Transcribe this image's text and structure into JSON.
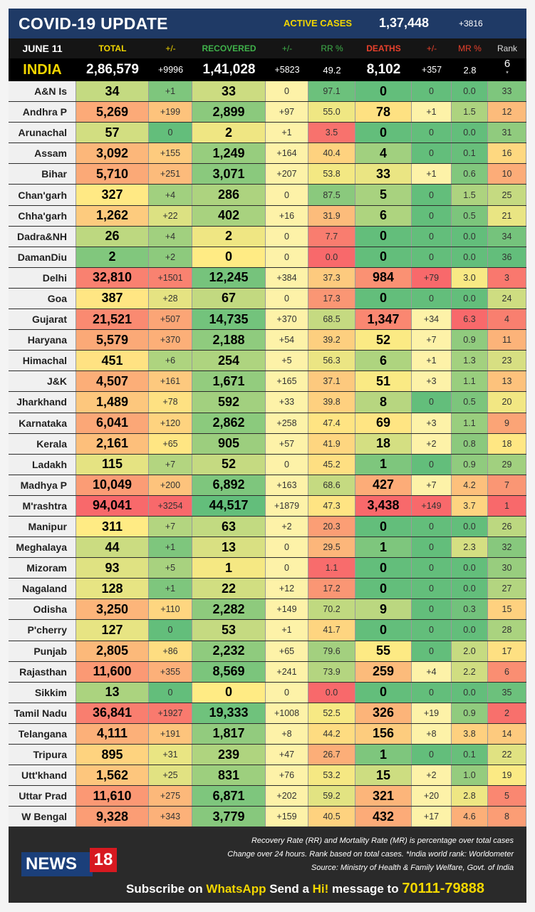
{
  "header": {
    "title": "COVID-19 UPDATE",
    "active_label": "ACTIVE CASES",
    "active_value": "1,37,448",
    "active_change": "+3816"
  },
  "columns": {
    "date": "JUNE 11",
    "total": "TOTAL",
    "total_change": "+/-",
    "recovered": "RECOVERED",
    "recovered_change": "+/-",
    "rr": "RR %",
    "deaths": "DEATHS",
    "deaths_change": "+/-",
    "mr": "MR %",
    "rank": "Rank"
  },
  "india": {
    "name": "INDIA",
    "total": "2,86,579",
    "total_change": "+9996",
    "recovered": "1,41,028",
    "recovered_change": "+5823",
    "rr": "49.2",
    "deaths": "8,102",
    "deaths_change": "+357",
    "mr": "2.8",
    "rank": "6",
    "rank_mark": "*"
  },
  "colors": {
    "header_bg": "#1f3a66",
    "accent_yellow": "#f2d600",
    "recovered_green": "#3fb14a",
    "deaths_red": "#e8412c"
  },
  "rows": [
    {
      "state": "A&N Is",
      "total": "34",
      "total_change": "+1",
      "recovered": "33",
      "recovered_change": "0",
      "rr": "97.1",
      "deaths": "0",
      "deaths_change": "0",
      "mr": "0.0",
      "rank": "33"
    },
    {
      "state": "Andhra P",
      "total": "5,269",
      "total_change": "+199",
      "recovered": "2,899",
      "recovered_change": "+97",
      "rr": "55.0",
      "deaths": "78",
      "deaths_change": "+1",
      "mr": "1.5",
      "rank": "12"
    },
    {
      "state": "Arunachal",
      "total": "57",
      "total_change": "0",
      "recovered": "2",
      "recovered_change": "+1",
      "rr": "3.5",
      "deaths": "0",
      "deaths_change": "0",
      "mr": "0.0",
      "rank": "31"
    },
    {
      "state": "Assam",
      "total": "3,092",
      "total_change": "+155",
      "recovered": "1,249",
      "recovered_change": "+164",
      "rr": "40.4",
      "deaths": "4",
      "deaths_change": "0",
      "mr": "0.1",
      "rank": "16"
    },
    {
      "state": "Bihar",
      "total": "5,710",
      "total_change": "+251",
      "recovered": "3,071",
      "recovered_change": "+207",
      "rr": "53.8",
      "deaths": "33",
      "deaths_change": "+1",
      "mr": "0.6",
      "rank": "10"
    },
    {
      "state": "Chan'garh",
      "total": "327",
      "total_change": "+4",
      "recovered": "286",
      "recovered_change": "0",
      "rr": "87.5",
      "deaths": "5",
      "deaths_change": "0",
      "mr": "1.5",
      "rank": "25"
    },
    {
      "state": "Chha'garh",
      "total": "1,262",
      "total_change": "+22",
      "recovered": "402",
      "recovered_change": "+16",
      "rr": "31.9",
      "deaths": "6",
      "deaths_change": "0",
      "mr": "0.5",
      "rank": "21"
    },
    {
      "state": "Dadra&NH",
      "total": "26",
      "total_change": "+4",
      "recovered": "2",
      "recovered_change": "0",
      "rr": "7.7",
      "deaths": "0",
      "deaths_change": "0",
      "mr": "0.0",
      "rank": "34"
    },
    {
      "state": "DamanDiu",
      "total": "2",
      "total_change": "+2",
      "recovered": "0",
      "recovered_change": "0",
      "rr": "0.0",
      "deaths": "0",
      "deaths_change": "0",
      "mr": "0.0",
      "rank": "36"
    },
    {
      "state": "Delhi",
      "total": "32,810",
      "total_change": "+1501",
      "recovered": "12,245",
      "recovered_change": "+384",
      "rr": "37.3",
      "deaths": "984",
      "deaths_change": "+79",
      "mr": "3.0",
      "rank": "3"
    },
    {
      "state": "Goa",
      "total": "387",
      "total_change": "+28",
      "recovered": "67",
      "recovered_change": "0",
      "rr": "17.3",
      "deaths": "0",
      "deaths_change": "0",
      "mr": "0.0",
      "rank": "24"
    },
    {
      "state": "Gujarat",
      "total": "21,521",
      "total_change": "+507",
      "recovered": "14,735",
      "recovered_change": "+370",
      "rr": "68.5",
      "deaths": "1,347",
      "deaths_change": "+34",
      "mr": "6.3",
      "rank": "4"
    },
    {
      "state": "Haryana",
      "total": "5,579",
      "total_change": "+370",
      "recovered": "2,188",
      "recovered_change": "+54",
      "rr": "39.2",
      "deaths": "52",
      "deaths_change": "+7",
      "mr": "0.9",
      "rank": "11"
    },
    {
      "state": "Himachal",
      "total": "451",
      "total_change": "+6",
      "recovered": "254",
      "recovered_change": "+5",
      "rr": "56.3",
      "deaths": "6",
      "deaths_change": "+1",
      "mr": "1.3",
      "rank": "23"
    },
    {
      "state": "J&K",
      "total": "4,507",
      "total_change": "+161",
      "recovered": "1,671",
      "recovered_change": "+165",
      "rr": "37.1",
      "deaths": "51",
      "deaths_change": "+3",
      "mr": "1.1",
      "rank": "13"
    },
    {
      "state": "Jharkhand",
      "total": "1,489",
      "total_change": "+78",
      "recovered": "592",
      "recovered_change": "+33",
      "rr": "39.8",
      "deaths": "8",
      "deaths_change": "0",
      "mr": "0.5",
      "rank": "20"
    },
    {
      "state": "Karnataka",
      "total": "6,041",
      "total_change": "+120",
      "recovered": "2,862",
      "recovered_change": "+258",
      "rr": "47.4",
      "deaths": "69",
      "deaths_change": "+3",
      "mr": "1.1",
      "rank": "9"
    },
    {
      "state": "Kerala",
      "total": "2,161",
      "total_change": "+65",
      "recovered": "905",
      "recovered_change": "+57",
      "rr": "41.9",
      "deaths": "18",
      "deaths_change": "+2",
      "mr": "0.8",
      "rank": "18"
    },
    {
      "state": "Ladakh",
      "total": "115",
      "total_change": "+7",
      "recovered": "52",
      "recovered_change": "0",
      "rr": "45.2",
      "deaths": "1",
      "deaths_change": "0",
      "mr": "0.9",
      "rank": "29"
    },
    {
      "state": "Madhya P",
      "total": "10,049",
      "total_change": "+200",
      "recovered": "6,892",
      "recovered_change": "+163",
      "rr": "68.6",
      "deaths": "427",
      "deaths_change": "+7",
      "mr": "4.2",
      "rank": "7"
    },
    {
      "state": "M'rashtra",
      "total": "94,041",
      "total_change": "+3254",
      "recovered": "44,517",
      "recovered_change": "+1879",
      "rr": "47.3",
      "deaths": "3,438",
      "deaths_change": "+149",
      "mr": "3.7",
      "rank": "1"
    },
    {
      "state": "Manipur",
      "total": "311",
      "total_change": "+7",
      "recovered": "63",
      "recovered_change": "+2",
      "rr": "20.3",
      "deaths": "0",
      "deaths_change": "0",
      "mr": "0.0",
      "rank": "26"
    },
    {
      "state": "Meghalaya",
      "total": "44",
      "total_change": "+1",
      "recovered": "13",
      "recovered_change": "0",
      "rr": "29.5",
      "deaths": "1",
      "deaths_change": "0",
      "mr": "2.3",
      "rank": "32"
    },
    {
      "state": "Mizoram",
      "total": "93",
      "total_change": "+5",
      "recovered": "1",
      "recovered_change": "0",
      "rr": "1.1",
      "deaths": "0",
      "deaths_change": "0",
      "mr": "0.0",
      "rank": "30"
    },
    {
      "state": "Nagaland",
      "total": "128",
      "total_change": "+1",
      "recovered": "22",
      "recovered_change": "+12",
      "rr": "17.2",
      "deaths": "0",
      "deaths_change": "0",
      "mr": "0.0",
      "rank": "27"
    },
    {
      "state": "Odisha",
      "total": "3,250",
      "total_change": "+110",
      "recovered": "2,282",
      "recovered_change": "+149",
      "rr": "70.2",
      "deaths": "9",
      "deaths_change": "0",
      "mr": "0.3",
      "rank": "15"
    },
    {
      "state": "P'cherry",
      "total": "127",
      "total_change": "0",
      "recovered": "53",
      "recovered_change": "+1",
      "rr": "41.7",
      "deaths": "0",
      "deaths_change": "0",
      "mr": "0.0",
      "rank": "28"
    },
    {
      "state": "Punjab",
      "total": "2,805",
      "total_change": "+86",
      "recovered": "2,232",
      "recovered_change": "+65",
      "rr": "79.6",
      "deaths": "55",
      "deaths_change": "0",
      "mr": "2.0",
      "rank": "17"
    },
    {
      "state": "Rajasthan",
      "total": "11,600",
      "total_change": "+355",
      "recovered": "8,569",
      "recovered_change": "+241",
      "rr": "73.9",
      "deaths": "259",
      "deaths_change": "+4",
      "mr": "2.2",
      "rank": "6"
    },
    {
      "state": "Sikkim",
      "total": "13",
      "total_change": "0",
      "recovered": "0",
      "recovered_change": "0",
      "rr": "0.0",
      "deaths": "0",
      "deaths_change": "0",
      "mr": "0.0",
      "rank": "35"
    },
    {
      "state": "Tamil Nadu",
      "total": "36,841",
      "total_change": "+1927",
      "recovered": "19,333",
      "recovered_change": "+1008",
      "rr": "52.5",
      "deaths": "326",
      "deaths_change": "+19",
      "mr": "0.9",
      "rank": "2"
    },
    {
      "state": "Telangana",
      "total": "4,111",
      "total_change": "+191",
      "recovered": "1,817",
      "recovered_change": "+8",
      "rr": "44.2",
      "deaths": "156",
      "deaths_change": "+8",
      "mr": "3.8",
      "rank": "14"
    },
    {
      "state": "Tripura",
      "total": "895",
      "total_change": "+31",
      "recovered": "239",
      "recovered_change": "+47",
      "rr": "26.7",
      "deaths": "1",
      "deaths_change": "0",
      "mr": "0.1",
      "rank": "22"
    },
    {
      "state": "Utt'khand",
      "total": "1,562",
      "total_change": "+25",
      "recovered": "831",
      "recovered_change": "+76",
      "rr": "53.2",
      "deaths": "15",
      "deaths_change": "+2",
      "mr": "1.0",
      "rank": "19"
    },
    {
      "state": "Uttar Prad",
      "total": "11,610",
      "total_change": "+275",
      "recovered": "6,871",
      "recovered_change": "+202",
      "rr": "59.2",
      "deaths": "321",
      "deaths_change": "+20",
      "mr": "2.8",
      "rank": "5"
    },
    {
      "state": "W Bengal",
      "total": "9,328",
      "total_change": "+343",
      "recovered": "3,779",
      "recovered_change": "+159",
      "rr": "40.5",
      "deaths": "432",
      "deaths_change": "+17",
      "mr": "4.6",
      "rank": "8"
    }
  ],
  "footer": {
    "note1": "Recovery Rate (RR) and Mortality Rate (MR) is percentage over total cases",
    "note2": "Change over 24 hours. Rank based on total cases. *India world rank: Worldometer",
    "note3": "Source: Ministry of Health & Family Welfare, Govt. of India",
    "logo_text": "NEWS",
    "logo_num": "18",
    "subscribe_prefix": "Subscribe on ",
    "subscribe_app": "WhatsApp",
    "subscribe_mid": " Send a ",
    "subscribe_hi": "Hi!",
    "subscribe_suffix": " message to ",
    "phone": "70111-79888"
  }
}
